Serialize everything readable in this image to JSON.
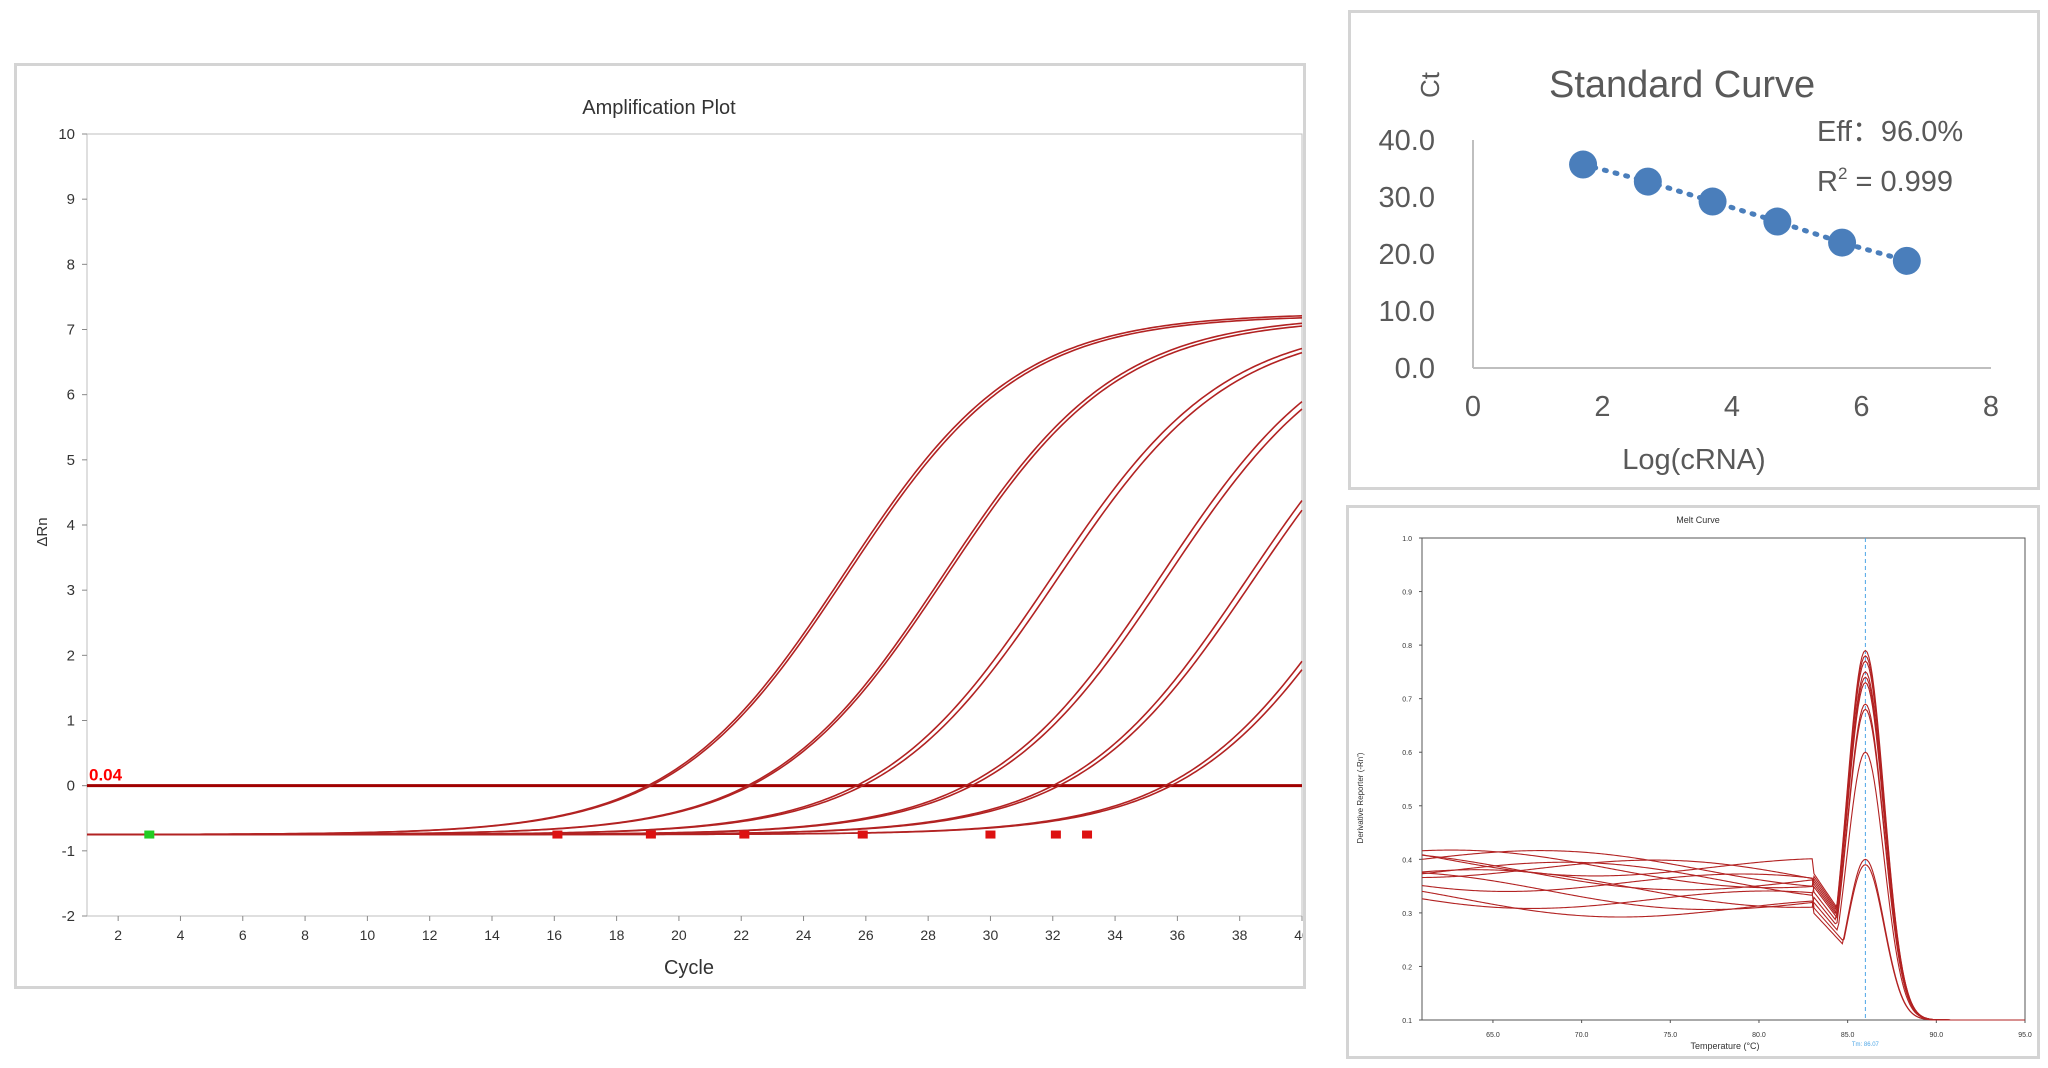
{
  "chart_data": [
    {
      "type": "line",
      "title": "Amplification Plot",
      "xlabel": "Cycle",
      "ylabel": "ΔRn",
      "xlim": [
        1,
        40
      ],
      "ylim": [
        -2,
        10
      ],
      "x_ticks": [
        2,
        4,
        6,
        8,
        10,
        12,
        14,
        16,
        18,
        20,
        22,
        24,
        26,
        28,
        30,
        32,
        34,
        36,
        38,
        40
      ],
      "y_ticks": [
        -2,
        -1,
        0,
        1,
        2,
        3,
        4,
        5,
        6,
        7,
        8,
        9,
        10
      ],
      "threshold": {
        "value": 0.0,
        "label": "0.04"
      },
      "baseline": -0.75,
      "series": [
        {
          "ct": 19.0,
          "plateau": 7.25
        },
        {
          "ct": 19.1,
          "plateau": 7.22
        },
        {
          "ct": 22.2,
          "plateau": 7.22
        },
        {
          "ct": 22.3,
          "plateau": 7.18
        },
        {
          "ct": 25.7,
          "plateau": 7.12
        },
        {
          "ct": 25.9,
          "plateau": 7.08
        },
        {
          "ct": 29.2,
          "plateau": 7.2
        },
        {
          "ct": 29.4,
          "plateau": 7.15
        },
        {
          "ct": 32.0,
          "plateau": 7.1
        },
        {
          "ct": 32.2,
          "plateau": 7.05
        },
        {
          "ct": 35.6,
          "plateau": 7.0
        },
        {
          "ct": 35.8,
          "plateau": 6.95
        }
      ],
      "markers": [
        {
          "x": 3.0,
          "color": "#22cc22"
        },
        {
          "x": 16.1,
          "color": "#dd1111"
        },
        {
          "x": 19.1,
          "color": "#dd1111"
        },
        {
          "x": 22.1,
          "color": "#dd1111"
        },
        {
          "x": 25.9,
          "color": "#dd1111"
        },
        {
          "x": 30.0,
          "color": "#dd1111"
        },
        {
          "x": 32.1,
          "color": "#dd1111"
        },
        {
          "x": 33.1,
          "color": "#dd1111"
        }
      ],
      "colors": {
        "curve": "#b22222",
        "threshold": "#a00000",
        "threshold_label": "#ff0000"
      }
    },
    {
      "type": "scatter",
      "title": "Standard Curve",
      "xlabel": "Log(cRNA)",
      "ylabel": "Ct",
      "xlim": [
        0,
        8
      ],
      "ylim": [
        0,
        40
      ],
      "x_ticks": [
        0,
        2,
        4,
        6,
        8
      ],
      "y_ticks": [
        "0.0",
        "10.0",
        "20.0",
        "30.0",
        "40.0"
      ],
      "x": [
        1.7,
        2.7,
        3.7,
        4.7,
        5.7,
        6.7
      ],
      "y": [
        35.7,
        32.7,
        29.2,
        25.7,
        22.0,
        18.8
      ],
      "annotations": {
        "eff": "Eff：96.0%",
        "r2_prefix": "R",
        "r2_sup": "2",
        "r2_value": " = 0.999"
      },
      "colors": {
        "point": "#4a7ebb",
        "axis": "#bfbfbf",
        "text": "#595959"
      }
    },
    {
      "type": "line",
      "title": "Melt Curve",
      "xlabel": "Temperature (°C)",
      "ylabel": "Derivative Reporter (-Rn')",
      "xlim": [
        61,
        95
      ],
      "ylim": [
        0.1,
        1.0
      ],
      "x_ticks": [
        "65.0",
        "70.0",
        "75.0",
        "80.0",
        "85.0",
        "90.0",
        "95.0"
      ],
      "y_ticks": [
        "0.1",
        "0.2",
        "0.3",
        "0.4",
        "0.5",
        "0.6",
        "0.7",
        "0.8",
        "0.9",
        "1.0"
      ],
      "tm_marker": {
        "x": 86.0,
        "label": "Tm: 86.07"
      },
      "series": [
        {
          "peak": 0.79,
          "start": 0.3
        },
        {
          "peak": 0.78,
          "start": 0.295
        },
        {
          "peak": 0.77,
          "start": 0.285
        },
        {
          "peak": 0.75,
          "start": 0.305
        },
        {
          "peak": 0.74,
          "start": 0.27
        },
        {
          "peak": 0.73,
          "start": 0.29
        },
        {
          "peak": 0.69,
          "start": 0.28
        },
        {
          "peak": 0.68,
          "start": 0.26
        },
        {
          "peak": 0.6,
          "start": 0.25
        },
        {
          "peak": 0.4,
          "start": 0.23
        },
        {
          "peak": 0.39,
          "start": 0.24
        }
      ],
      "colors": {
        "curve": "#b22222",
        "tm": "#4da6e6"
      }
    }
  ]
}
